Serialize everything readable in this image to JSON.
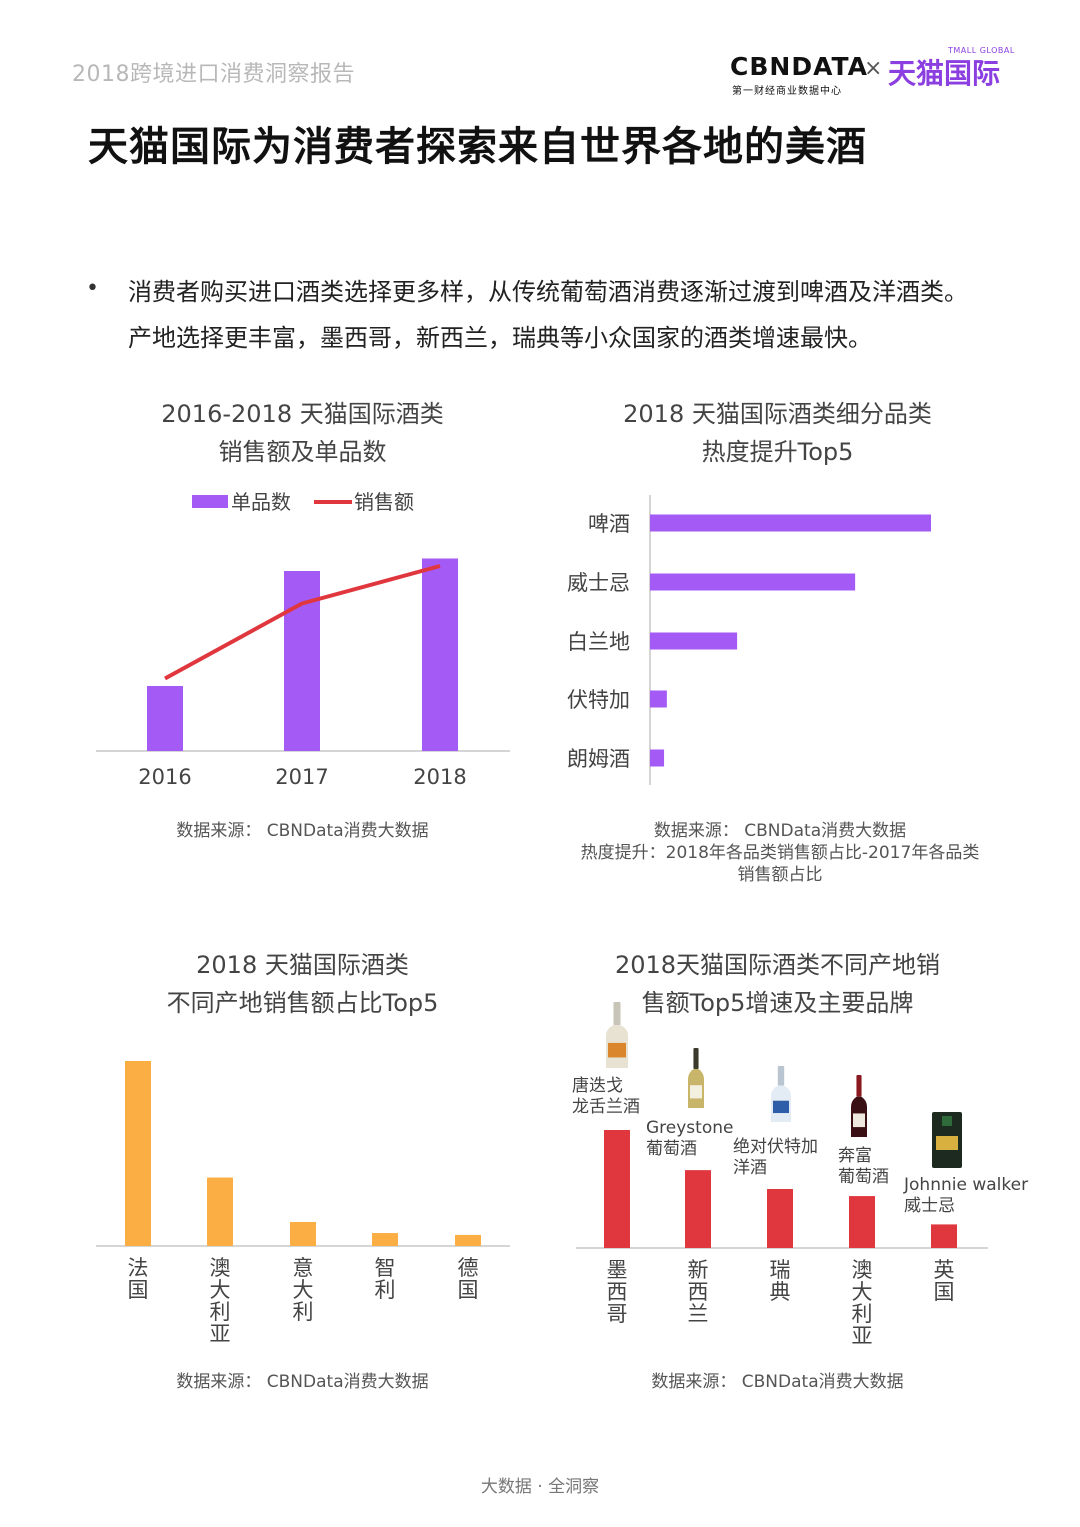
{
  "header": {
    "report_title": "2018跨境进口消费洞察报告",
    "logo_cbn": "CBNDATA",
    "logo_cbn_sub": "第一财经商业数据中心",
    "logo_x": "×",
    "logo_tmall": "天猫国际",
    "logo_tmall_sub": "TMALL GLOBAL"
  },
  "page_title": "天猫国际为消费者探索来自世界各地的美酒",
  "bullet": {
    "marker": "•",
    "line1": "消费者购买进口酒类选择更多样，从传统葡萄酒消费逐渐过渡到啤酒及洋酒类。",
    "line2": "产地选择更丰富，墨西哥，新西兰，瑞典等小众国家的酒类增速最快。"
  },
  "colors": {
    "purple": "#a45af5",
    "red": "#e0373f",
    "orange": "#fbae44",
    "axis": "#d5d5d5"
  },
  "chart_data": [
    {
      "type": "bar",
      "title_line1": "2016-2018 天猫国际酒类",
      "title_line2": "销售额及单品数",
      "categories": [
        "2016",
        "2017",
        "2018"
      ],
      "series": [
        {
          "name": "单品数",
          "type": "bar",
          "values": [
            26,
            72,
            77
          ]
        },
        {
          "name": "销售额",
          "type": "line",
          "values": [
            29,
            59,
            74
          ]
        }
      ],
      "ylim": [
        0,
        100
      ],
      "legend": "top",
      "source": "数据来源： CBNData消费大数据"
    },
    {
      "type": "bar",
      "orientation": "horizontal",
      "title_line1": "2018 天猫国际酒类细分品类",
      "title_line2": "热度提升Top5",
      "categories": [
        "啤酒",
        "威士忌",
        "白兰地",
        "伏特加",
        "朗姆酒"
      ],
      "values": [
        100,
        73,
        31,
        6,
        5
      ],
      "xlim": [
        0,
        100
      ],
      "source": "数据来源： CBNData消费大数据",
      "note_line1": "热度提升：2018年各品类销售额占比-2017年各品类",
      "note_line2": "销售额占比"
    },
    {
      "type": "bar",
      "title_line1": "2018 天猫国际酒类",
      "title_line2": "不同产地销售额占比Top5",
      "categories": [
        "法国",
        "澳大利亚",
        "意大利",
        "智利",
        "德国"
      ],
      "values": [
        100,
        37,
        13,
        7,
        6
      ],
      "ylim": [
        0,
        100
      ],
      "source": "数据来源： CBNData消费大数据"
    },
    {
      "type": "bar",
      "title_line1": "2018天猫国际酒类不同产地销",
      "title_line2": "售额Top5增速及主要品牌",
      "categories": [
        "墨西哥",
        "新西兰",
        "瑞典",
        "澳大利亚",
        "英国"
      ],
      "values": [
        100,
        66,
        50,
        44,
        20
      ],
      "ylim": [
        0,
        100
      ],
      "annotations": [
        {
          "line1": "唐迭戈",
          "line2": "龙舌兰酒",
          "bottle": "tequila-bottle-icon"
        },
        {
          "line1": "Greystone",
          "line2": "葡萄酒",
          "bottle": "white-wine-bottle-icon"
        },
        {
          "line1": "绝对伏特加",
          "line2": "洋酒",
          "bottle": "vodka-bottle-icon"
        },
        {
          "line1": "奔富",
          "line2": "葡萄酒",
          "bottle": "red-wine-bottle-icon"
        },
        {
          "line1": "Johnnie walker",
          "line2": "威士忌",
          "bottle": "whisky-bottle-icon"
        }
      ],
      "source": "数据来源： CBNData消费大数据"
    }
  ],
  "footer": "大数据 · 全洞察"
}
